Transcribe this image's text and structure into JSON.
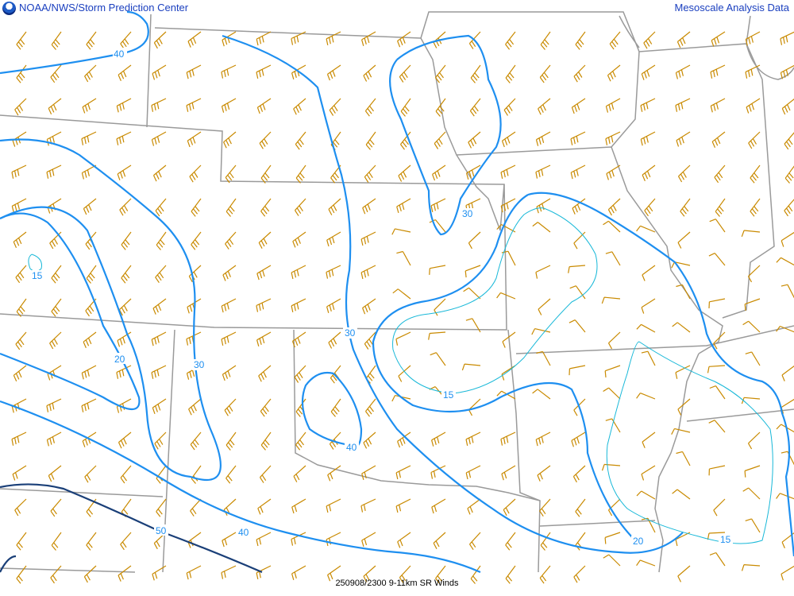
{
  "header": {
    "title": "NOAA/NWS/Storm Prediction Center",
    "product": "Mesoscale Analysis Data",
    "logo_icon": "noaa-logo"
  },
  "footer": {
    "caption": "250908/2300 9-11km SR Winds"
  },
  "colors": {
    "contour": "#1e8ff0",
    "contour_15": "#18b8d8",
    "contour_50": "#1a3f78",
    "barbs": "#c98a00",
    "borders": "#9a9a9a"
  },
  "contour_labels": [
    "40",
    "15",
    "20",
    "30",
    "30",
    "40",
    "30",
    "15",
    "50",
    "40",
    "20",
    "15"
  ]
}
